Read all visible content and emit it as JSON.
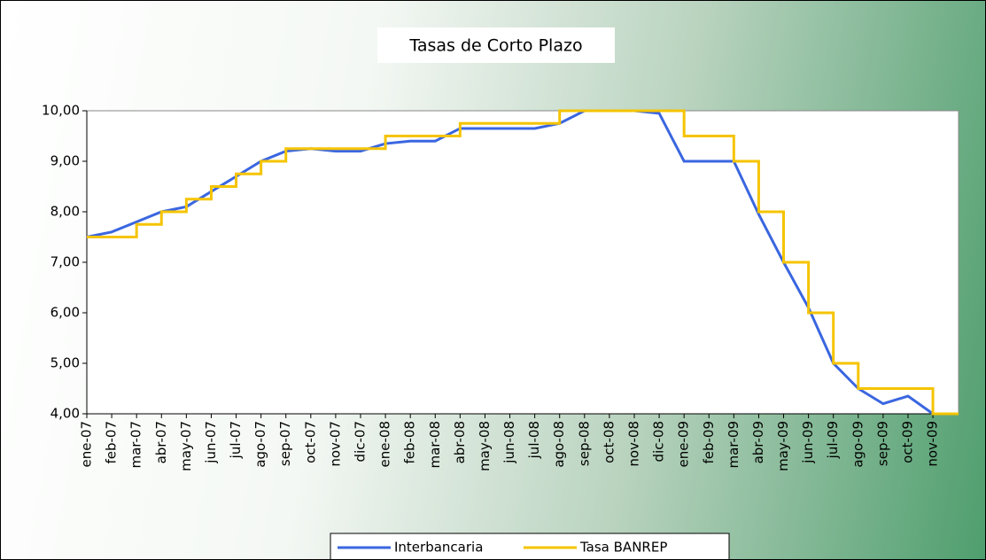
{
  "chart_data": {
    "type": "line",
    "title": "Tasas de Corto Plazo",
    "categories": [
      "ene-07",
      "feb-07",
      "mar-07",
      "abr-07",
      "may-07",
      "jun-07",
      "jul-07",
      "ago-07",
      "sep-07",
      "oct-07",
      "nov-07",
      "dic-07",
      "ene-08",
      "feb-08",
      "mar-08",
      "abr-08",
      "may-08",
      "jun-08",
      "jul-08",
      "ago-08",
      "sep-08",
      "oct-08",
      "nov-08",
      "dic-08",
      "ene-09",
      "feb-09",
      "mar-09",
      "abr-09",
      "may-09",
      "jun-09",
      "jul-09",
      "ago-09",
      "sep-09",
      "oct-09",
      "nov-09"
    ],
    "series": [
      {
        "name": "Interbancaria",
        "color": "#3a66e0",
        "step": false,
        "values": [
          7.5,
          7.6,
          7.8,
          8.0,
          8.1,
          8.4,
          8.7,
          9.0,
          9.2,
          9.25,
          9.2,
          9.2,
          9.35,
          9.4,
          9.4,
          9.65,
          9.65,
          9.65,
          9.65,
          9.75,
          10.0,
          10.0,
          10.0,
          9.95,
          9.0,
          9.0,
          9.0,
          7.95,
          7.0,
          6.1,
          5.0,
          4.5,
          4.2,
          4.35,
          4.0
        ]
      },
      {
        "name": "Tasa BANREP",
        "color": "#f5c400",
        "step": true,
        "values": [
          7.5,
          7.5,
          7.75,
          8.0,
          8.25,
          8.5,
          8.75,
          9.0,
          9.25,
          9.25,
          9.25,
          9.25,
          9.5,
          9.5,
          9.5,
          9.75,
          9.75,
          9.75,
          9.75,
          10.0,
          10.0,
          10.0,
          10.0,
          10.0,
          9.5,
          9.5,
          9.0,
          8.0,
          7.0,
          6.0,
          5.0,
          4.5,
          4.5,
          4.5,
          4.0
        ]
      }
    ],
    "ylim": [
      4,
      10
    ],
    "yticks": [
      {
        "value": 4,
        "label": "4,00"
      },
      {
        "value": 5,
        "label": "5,00"
      },
      {
        "value": 6,
        "label": "6,00"
      },
      {
        "value": 7,
        "label": "7,00"
      },
      {
        "value": 8,
        "label": "8,00"
      },
      {
        "value": 9,
        "label": "9,00"
      },
      {
        "value": 10,
        "label": "10,00"
      }
    ],
    "grid": false,
    "legend": "bottom"
  }
}
